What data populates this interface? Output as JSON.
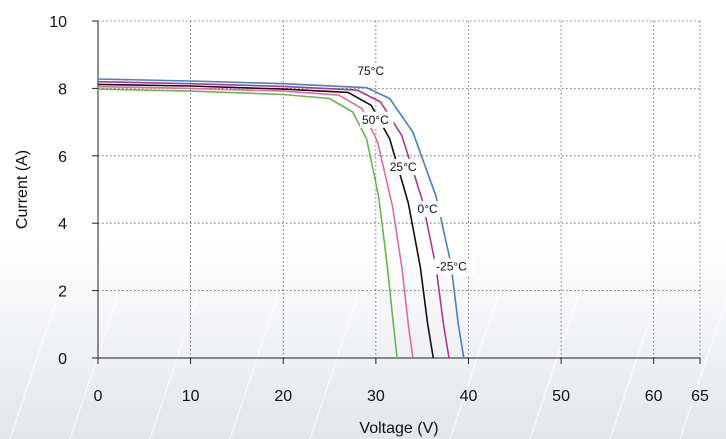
{
  "chart_data": {
    "type": "line",
    "xlabel": "Voltage (V)",
    "ylabel": "Current (A)",
    "xlim": [
      0,
      65
    ],
    "ylim": [
      0,
      10
    ],
    "xticks": [
      0,
      10,
      20,
      30,
      40,
      50,
      60,
      65
    ],
    "yticks": [
      0,
      2,
      4,
      6,
      8,
      10
    ],
    "grid": true,
    "series": [
      {
        "name": "75°C",
        "color": "#66b84a",
        "x": [
          0,
          10,
          20,
          25,
          27.5,
          29,
          30.3,
          31.2,
          31.9,
          32.3
        ],
        "y": [
          7.98,
          7.92,
          7.82,
          7.7,
          7.3,
          6.5,
          4.8,
          2.8,
          1.0,
          0
        ]
      },
      {
        "name": "50°C",
        "color": "#e06aa2",
        "x": [
          0,
          10,
          20,
          26,
          28.5,
          30.2,
          31.8,
          32.8,
          33.5,
          34.0
        ],
        "y": [
          8.05,
          8.0,
          7.92,
          7.8,
          7.4,
          6.4,
          4.5,
          2.7,
          1.0,
          0
        ]
      },
      {
        "name": "25°C",
        "color": "#111111",
        "x": [
          0,
          10,
          20,
          27,
          29.5,
          31.5,
          33.5,
          34.8,
          35.6,
          36.2
        ],
        "y": [
          8.12,
          8.07,
          7.98,
          7.88,
          7.5,
          6.5,
          4.6,
          2.7,
          1.0,
          0
        ]
      },
      {
        "name": "0°C",
        "color": "#b03a8a",
        "x": [
          0,
          10,
          20,
          28,
          30.5,
          32.8,
          35.0,
          36.5,
          37.3,
          37.9
        ],
        "y": [
          8.2,
          8.14,
          8.06,
          7.95,
          7.6,
          6.6,
          4.7,
          2.7,
          1.0,
          0
        ]
      },
      {
        "name": "-25°C",
        "color": "#4a7fc1",
        "x": [
          0,
          10,
          20,
          29,
          31.5,
          34.0,
          36.5,
          38.1,
          38.9,
          39.5
        ],
        "y": [
          8.28,
          8.22,
          8.14,
          8.02,
          7.7,
          6.7,
          4.8,
          2.8,
          1.0,
          0
        ]
      }
    ],
    "annotations": [
      {
        "text": "75°C",
        "x": 28.0,
        "y": 8.4
      },
      {
        "text": "50°C",
        "x": 28.5,
        "y": 6.95
      },
      {
        "text": "25°C",
        "x": 31.5,
        "y": 5.55
      },
      {
        "text": "0°C",
        "x": 34.5,
        "y": 4.3
      },
      {
        "text": "-25°C",
        "x": 36.5,
        "y": 2.6
      }
    ]
  }
}
